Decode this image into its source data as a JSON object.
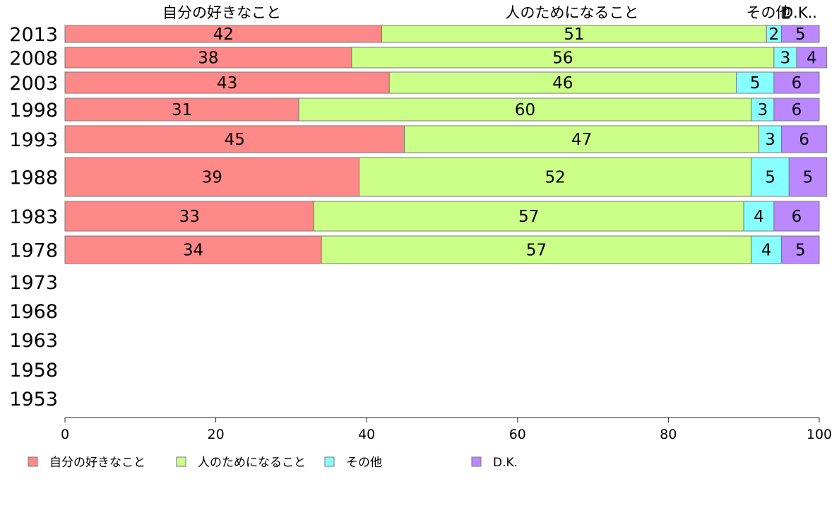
{
  "chart_data": {
    "type": "bar",
    "orientation": "horizontal",
    "stacked": true,
    "percent": true,
    "categories": [
      "2013",
      "2008",
      "2003",
      "1998",
      "1993",
      "1988",
      "1983",
      "1978",
      "1973",
      "1968",
      "1963",
      "1958",
      "1953"
    ],
    "series": [
      {
        "name": "自分の好きなこと",
        "color": "#ff8888",
        "values": [
          42,
          38,
          43,
          31,
          45,
          39,
          33,
          34,
          null,
          null,
          null,
          null,
          null
        ]
      },
      {
        "name": "人のためになること",
        "color": "#ccff88",
        "values": [
          51,
          56,
          46,
          60,
          47,
          52,
          57,
          57,
          null,
          null,
          null,
          null,
          null
        ]
      },
      {
        "name": "その他",
        "color": "#88ffff",
        "values": [
          2,
          3,
          5,
          3,
          3,
          5,
          4,
          4,
          null,
          null,
          null,
          null,
          null
        ]
      },
      {
        "name": "D.K.",
        "color": "#bb88ff",
        "values": [
          5,
          4,
          6,
          6,
          6,
          5,
          6,
          5,
          null,
          null,
          null,
          null,
          null
        ]
      }
    ],
    "column_headers": [
      "自分の好きなこと",
      "人のためになること",
      "その他",
      "D.K.."
    ],
    "xlim": [
      0,
      100
    ],
    "xticks": [
      "0",
      "20",
      "40",
      "60",
      "80",
      "100"
    ],
    "grid": false,
    "legend_position": "bottom"
  }
}
